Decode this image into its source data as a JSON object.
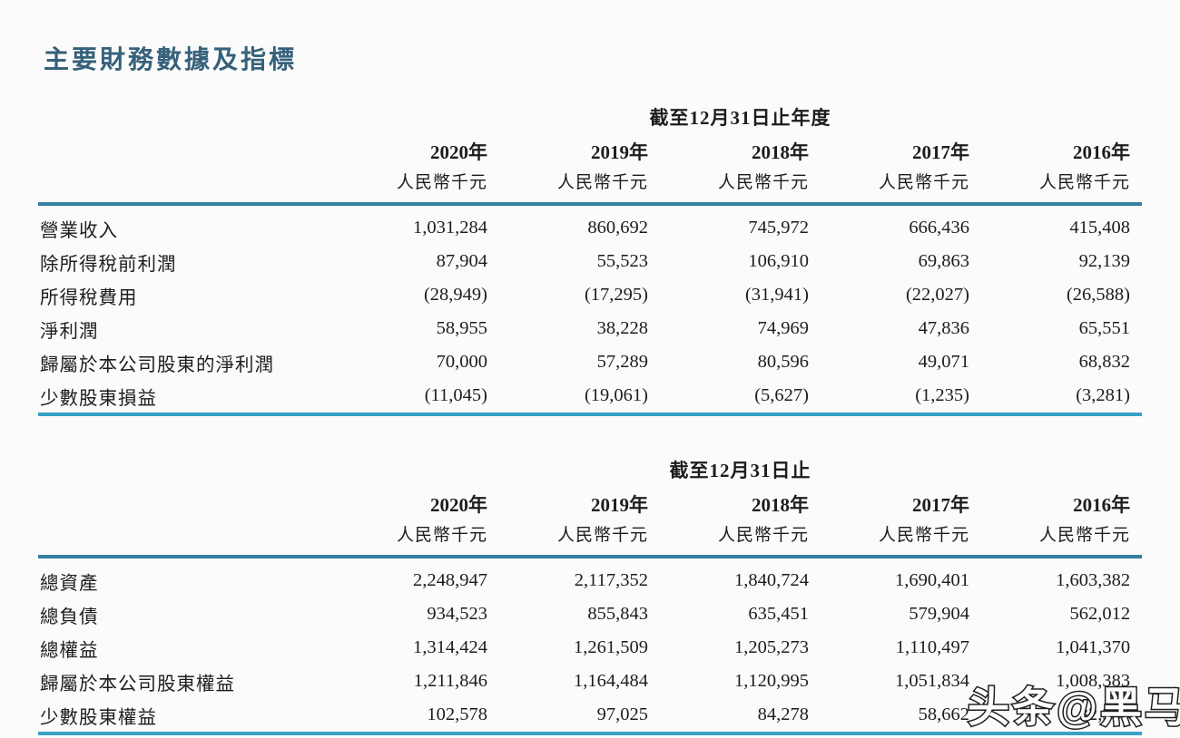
{
  "page": {
    "title": "主要財務數據及指標",
    "watermark": "头条@黑马",
    "colors": {
      "title_color": "#36617b",
      "rule_top": "#337f9f",
      "rule_bottom": "#38a2c6"
    }
  },
  "income_table": {
    "period_header": "截至12月31日止年度",
    "year_headers": [
      "2020年",
      "2019年",
      "2018年",
      "2017年",
      "2016年"
    ],
    "unit_label": "人民幣千元",
    "rows": [
      {
        "label": "營業收入",
        "values": [
          "1,031,284",
          "860,692",
          "745,972",
          "666,436",
          "415,408"
        ]
      },
      {
        "label": "除所得稅前利潤",
        "values": [
          "87,904",
          "55,523",
          "106,910",
          "69,863",
          "92,139"
        ]
      },
      {
        "label": "所得稅費用",
        "values": [
          "(28,949)",
          "(17,295)",
          "(31,941)",
          "(22,027)",
          "(26,588)"
        ]
      },
      {
        "label": "淨利潤",
        "values": [
          "58,955",
          "38,228",
          "74,969",
          "47,836",
          "65,551"
        ]
      },
      {
        "label": "歸屬於本公司股東的淨利潤",
        "values": [
          "70,000",
          "57,289",
          "80,596",
          "49,071",
          "68,832"
        ]
      },
      {
        "label": "少數股東損益",
        "values": [
          "(11,045)",
          "(19,061)",
          "(5,627)",
          "(1,235)",
          "(3,281)"
        ]
      }
    ]
  },
  "balance_table": {
    "period_header": "截至12月31日止",
    "year_headers": [
      "2020年",
      "2019年",
      "2018年",
      "2017年",
      "2016年"
    ],
    "unit_label": "人民幣千元",
    "rows": [
      {
        "label": "總資產",
        "values": [
          "2,248,947",
          "2,117,352",
          "1,840,724",
          "1,690,401",
          "1,603,382"
        ]
      },
      {
        "label": "總負債",
        "values": [
          "934,523",
          "855,843",
          "635,451",
          "579,904",
          "562,012"
        ]
      },
      {
        "label": "總權益",
        "values": [
          "1,314,424",
          "1,261,509",
          "1,205,273",
          "1,110,497",
          "1,041,370"
        ]
      },
      {
        "label": "歸屬於本公司股東權益",
        "values": [
          "1,211,846",
          "1,164,484",
          "1,120,995",
          "1,051,834",
          "1,008,383"
        ]
      },
      {
        "label": "少數股東權益",
        "values": [
          "102,578",
          "97,025",
          "84,278",
          "58,662",
          "32,987"
        ]
      }
    ]
  }
}
